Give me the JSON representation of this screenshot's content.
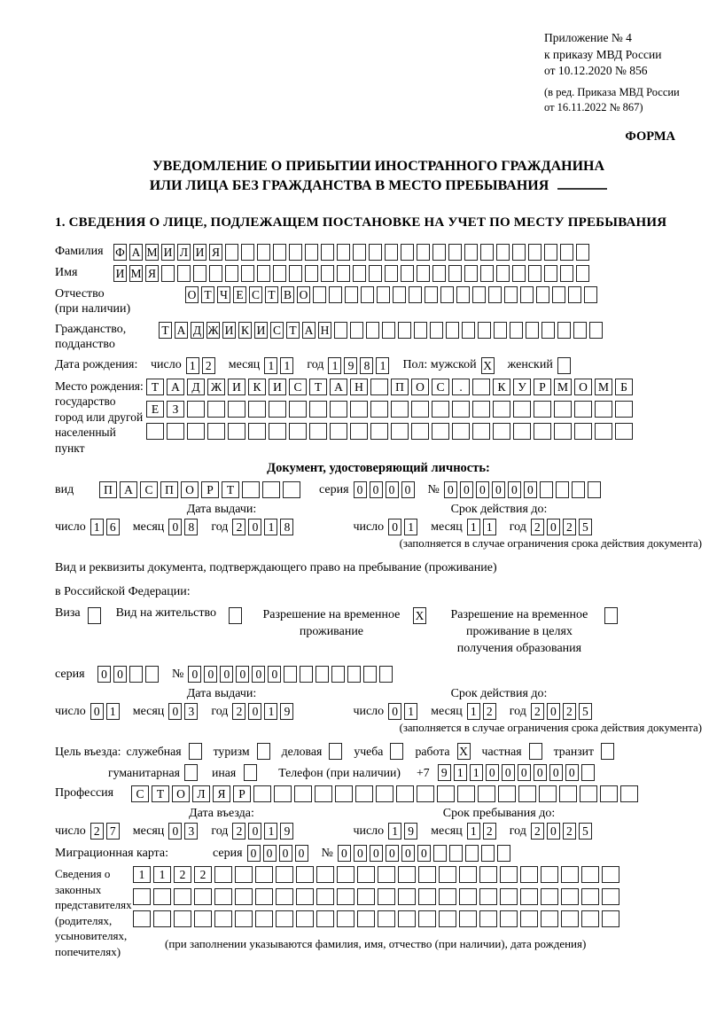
{
  "header": {
    "line1": "Приложение № 4",
    "line2": "к приказу МВД России",
    "line3": "от 10.12.2020 № 856",
    "line4": "(в ред. Приказа МВД России",
    "line5": "от 16.11.2022 № 867)",
    "forma": "ФОРМА"
  },
  "title": {
    "line1": "УВЕДОМЛЕНИЕ О ПРИБЫТИИ ИНОСТРАННОГО ГРАЖДАНИНА",
    "line2": "ИЛИ ЛИЦА БЕЗ ГРАЖДАНСТВА В МЕСТО ПРЕБЫВАНИЯ"
  },
  "section1": {
    "heading": "1. СВЕДЕНИЯ О ЛИЦЕ, ПОДЛЕЖАЩЕМ ПОСТАНОВКЕ НА УЧЕТ ПО МЕСТУ ПРЕБЫВАНИЯ"
  },
  "labels": {
    "surname": "Фамилия",
    "firstname": "Имя",
    "patronymic_1": "Отчество",
    "patronymic_2": "(при наличии)",
    "citizenship_1": "Гражданство,",
    "citizenship_2": "подданство",
    "birth_date": "Дата рождения:",
    "day": "число",
    "month": "месяц",
    "year": "год",
    "sex_male": "Пол: мужской",
    "sex_female": "женский",
    "birth_place_1": "Место рождения:",
    "birth_place_2": "государство",
    "birth_place_3": "город или другой",
    "birth_place_4": "населенный пункт",
    "id_doc_heading": "Документ, удостоверяющий личность:",
    "doc_kind": "вид",
    "series": "серия",
    "number_sign": "№",
    "issue_date": "Дата выдачи:",
    "valid_until": "Срок действия до:",
    "restriction_note": "(заполняется в случае ограничения срока действия документа)",
    "resid_doc_1": "Вид и реквизиты документа, подтверждающего право на пребывание (проживание)",
    "resid_doc_2": "в Российской Федерации:",
    "visa": "Виза",
    "residence_permit": "Вид на жительство",
    "temp_residence_permit": "Разрешение на временное проживание",
    "temp_residence_permit_edu": "Разрешение на временное проживание в целях получения образования",
    "entry_purpose": "Цель въезда:",
    "official": "служебная",
    "tourism": "туризм",
    "business": "деловая",
    "study": "учеба",
    "work": "работа",
    "private": "частная",
    "transit": "транзит",
    "humanitarian": "гуманитарная",
    "other": "иная",
    "phone": "Телефон (при наличии)",
    "phone_prefix": "+7",
    "profession": "Профессия",
    "entry_date": "Дата въезда:",
    "stay_until": "Срок пребывания до:",
    "migration_card": "Миграционная карта:",
    "repr_1": "Сведения о",
    "repr_2": "законных",
    "repr_3": "представителях",
    "repr_4": "(родителях,",
    "repr_5": "усыновителях,",
    "repr_6": "попечителях)",
    "repr_note": "(при заполнении указываются фамилия, имя, отчество (при наличии), дата рождения)"
  },
  "cells": {
    "surname": {
      "text": "ФАМИЛИЯ",
      "total": 30
    },
    "firstname": {
      "text": "ИМЯ",
      "total": 30
    },
    "patronymic": {
      "text": "ОТЧЕСТВО",
      "total": 26
    },
    "citizenship": {
      "text": "ТАДЖИКИСТАН",
      "total": 28
    },
    "birth_day": {
      "text": "12",
      "total": 2
    },
    "birth_month": {
      "text": "11",
      "total": 2
    },
    "birth_year": {
      "text": "1981",
      "total": 4
    },
    "sex_male_cb": {
      "text": "X",
      "total": 1
    },
    "sex_female_cb": {
      "text": "",
      "total": 1
    },
    "birth_place_row1": {
      "text": "ТАДЖИКИСТАН ПОС. КУРМОМБ",
      "total": 24
    },
    "birth_place_row2": {
      "text": "ЕЗ",
      "total": 24
    },
    "birth_place_row3": {
      "text": "",
      "total": 24
    },
    "id_kind": {
      "text": "ПАСПОРТ",
      "total": 10
    },
    "id_series": {
      "text": "0000",
      "total": 4
    },
    "id_number": {
      "text": "000000",
      "total": 10
    },
    "id_issue_day": {
      "text": "16",
      "total": 2
    },
    "id_issue_month": {
      "text": "08",
      "total": 2
    },
    "id_issue_year": {
      "text": "2018",
      "total": 4
    },
    "id_valid_day": {
      "text": "01",
      "total": 2
    },
    "id_valid_month": {
      "text": "11",
      "total": 2
    },
    "id_valid_year": {
      "text": "2025",
      "total": 4
    },
    "visa_cb": {
      "text": "",
      "total": 1
    },
    "residence_permit_cb": {
      "text": "",
      "total": 1
    },
    "temp_permit_cb": {
      "text": "X",
      "total": 1
    },
    "temp_permit_edu_cb": {
      "text": "",
      "total": 1
    },
    "resid_series": {
      "text": "00",
      "total": 4
    },
    "resid_number": {
      "text": "000000",
      "total": 13
    },
    "resid_issue_day": {
      "text": "01",
      "total": 2
    },
    "resid_issue_month": {
      "text": "03",
      "total": 2
    },
    "resid_issue_year": {
      "text": "2019",
      "total": 4
    },
    "resid_valid_day": {
      "text": "01",
      "total": 2
    },
    "resid_valid_month": {
      "text": "12",
      "total": 2
    },
    "resid_valid_year": {
      "text": "2025",
      "total": 4
    },
    "purpose_official_cb": {
      "text": "",
      "total": 1
    },
    "purpose_tourism_cb": {
      "text": "",
      "total": 1
    },
    "purpose_business_cb": {
      "text": "",
      "total": 1
    },
    "purpose_study_cb": {
      "text": "",
      "total": 1
    },
    "purpose_work_cb": {
      "text": "X",
      "total": 1
    },
    "purpose_private_cb": {
      "text": "",
      "total": 1
    },
    "purpose_transit_cb": {
      "text": "",
      "total": 1
    },
    "purpose_humanitarian_cb": {
      "text": "",
      "total": 1
    },
    "purpose_other_cb": {
      "text": "",
      "total": 1
    },
    "phone": {
      "text": "911000000",
      "total": 10
    },
    "profession": {
      "text": "СТОЛЯР",
      "total": 25
    },
    "entry_day": {
      "text": "27",
      "total": 2
    },
    "entry_month": {
      "text": "03",
      "total": 2
    },
    "entry_year": {
      "text": "2019",
      "total": 4
    },
    "stay_day": {
      "text": "19",
      "total": 2
    },
    "stay_month": {
      "text": "12",
      "total": 2
    },
    "stay_year": {
      "text": "2025",
      "total": 4
    },
    "migr_series": {
      "text": "0000",
      "total": 4
    },
    "migr_number": {
      "text": "000000",
      "total": 11
    },
    "repr_row1": {
      "text": "1122",
      "total": 24
    },
    "repr_row2": {
      "text": "",
      "total": 24
    },
    "repr_row3": {
      "text": "",
      "total": 24
    }
  }
}
